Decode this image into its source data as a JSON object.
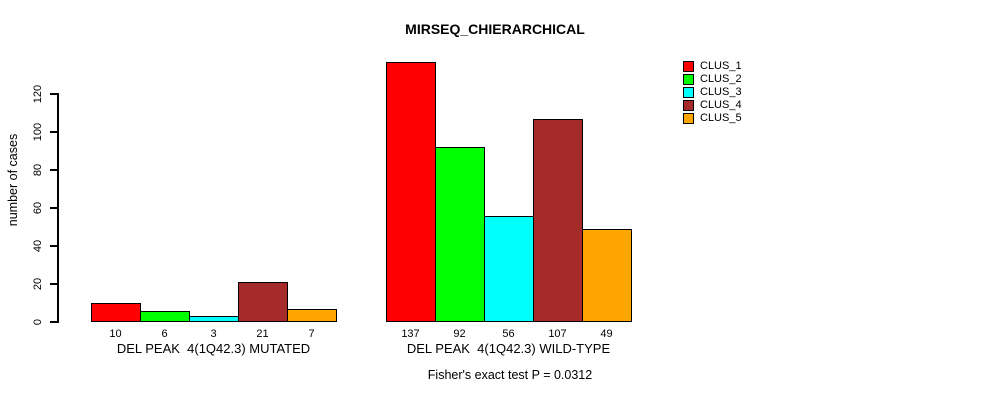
{
  "chart_data": {
    "type": "bar",
    "title": "MIRSEQ_CHIERARCHICAL",
    "ylabel": "number of cases",
    "xlabel": "",
    "ylim": [
      0,
      137
    ],
    "yticks": [
      0,
      20,
      40,
      60,
      80,
      100,
      120
    ],
    "grid": false,
    "legend_position": "top-right",
    "legend": [
      {
        "label": "CLUS_1",
        "color": "#FF0000"
      },
      {
        "label": "CLUS_2",
        "color": "#00FF00"
      },
      {
        "label": "CLUS_3",
        "color": "#00FFFF"
      },
      {
        "label": "CLUS_4",
        "color": "#A52A2A"
      },
      {
        "label": "CLUS_5",
        "color": "#FFA500"
      }
    ],
    "series_colors": [
      "#FF0000",
      "#00FF00",
      "#00FFFF",
      "#A52A2A",
      "#FFA500"
    ],
    "groups": [
      {
        "key": "mutated",
        "label": "DEL PEAK  4(1Q42.3) MUTATED",
        "values": [
          10,
          6,
          3,
          21,
          7
        ]
      },
      {
        "key": "wild-type",
        "label": "DEL PEAK  4(1Q42.3) WILD-TYPE",
        "values": [
          137,
          92,
          56,
          107,
          49
        ]
      }
    ],
    "series": [
      {
        "name": "CLUS_1",
        "values": [
          10,
          137
        ]
      },
      {
        "name": "CLUS_2",
        "values": [
          6,
          92
        ]
      },
      {
        "name": "CLUS_3",
        "values": [
          3,
          56
        ]
      },
      {
        "name": "CLUS_4",
        "values": [
          21,
          107
        ]
      },
      {
        "name": "CLUS_5",
        "values": [
          7,
          49
        ]
      }
    ],
    "annotation": "Fisher's exact test P = 0.0312"
  }
}
